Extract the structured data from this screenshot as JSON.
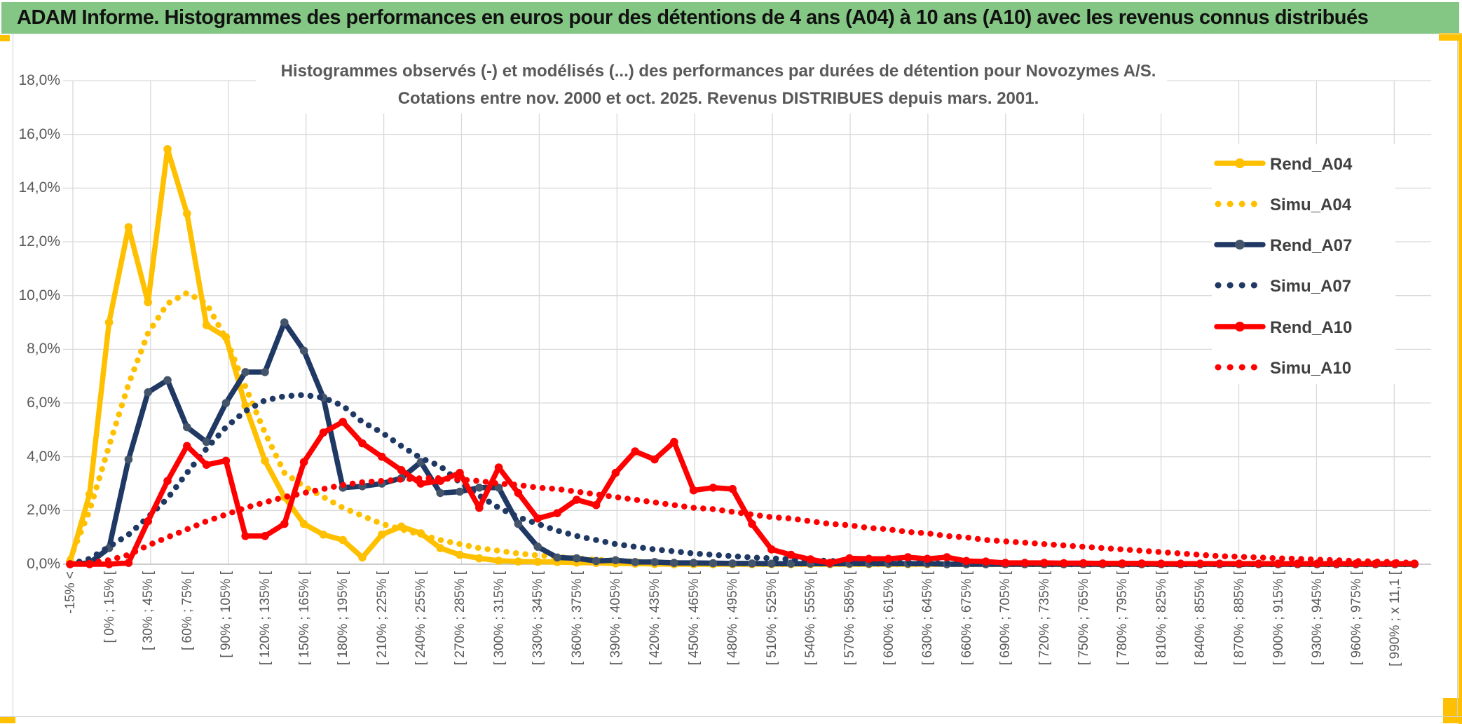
{
  "header": {
    "title": "ADAM Informe. Histogrammes des performances en euros pour des détentions de 4 ans (A04) à 10 ans (A10) avec les revenus connus distribués"
  },
  "chart": {
    "title_line1": "Histogrammes observés (-) et modélisés (...) des performances par durées de détention pour Novozymes A/S.",
    "title_line2": "Cotations entre nov. 2000 et oct. 2025. Revenus DISTRIBUES depuis mars. 2001."
  },
  "y_axis": {
    "labels_top_down": [
      "18,0%",
      "16,0%",
      "14,0%",
      "12,0%",
      "10,0%",
      "8,0%",
      "6,0%",
      "4,0%",
      "2,0%",
      "0,0%"
    ],
    "min": 0,
    "max": 18,
    "step": 2
  },
  "colors": {
    "header_bg": "#84c784",
    "gold": "#ffc000",
    "grid": "#d9d9d9",
    "axis_line": "#bfbfbf",
    "axis_text": "#595959",
    "title_text": "#595959",
    "legend_text": "#404040",
    "a04": "#ffc000",
    "a07_line": "#1f3864",
    "a07_marker": "#44546a",
    "a10": "#ff0000"
  },
  "legend": [
    {
      "label": "Rend_A04",
      "style": "solid",
      "color": "#ffc000",
      "marker": "#ffc000"
    },
    {
      "label": "Simu_A04",
      "style": "dotted",
      "color": "#ffc000",
      "marker": "#ffc000"
    },
    {
      "label": "Rend_A07",
      "style": "solid",
      "color": "#1f3864",
      "marker": "#44546a"
    },
    {
      "label": "Simu_A07",
      "style": "dotted",
      "color": "#1f3864",
      "marker": "#1f3864"
    },
    {
      "label": "Rend_A10",
      "style": "solid",
      "color": "#ff0000",
      "marker": "#ff0000"
    },
    {
      "label": "Simu_A10",
      "style": "dotted",
      "color": "#ff0000",
      "marker": "#ff0000"
    }
  ],
  "chart_data": {
    "type": "line",
    "title": "Histogrammes observés (-) et modélisés (...) des performances par durées de détention pour Novozymes A/S. Cotations entre nov. 2000 et oct. 2025. Revenus DISTRIBUES depuis mars. 2001.",
    "ylabel": "",
    "xlabel": "",
    "ylim": [
      0,
      18
    ],
    "grid": true,
    "legend_position": "right",
    "n_points": 70,
    "label_every": 2,
    "categories": [
      "-15% <",
      "[ 0% ; 15% [",
      "[ 30% ; 45% [",
      "[ 60% ; 75% [",
      "[ 90% ; 105% [",
      "[ 120% ; 135% [",
      "[ 150% ; 165% [",
      "[ 180% ; 195% [",
      "[ 210% ; 225% [",
      "[ 240% ; 255% [",
      "[ 270% ; 285% [",
      "[ 300% ; 315% [",
      "[ 330% ; 345% [",
      "[ 360% ; 375% [",
      "[ 390% ; 405% [",
      "[ 420% ; 435% [",
      "[ 450% ; 465% [",
      "[ 480% ; 495% [",
      "[ 510% ; 525% [",
      "[ 540% ; 555% [",
      "[ 570% ; 585% [",
      "[ 600% ; 615% [",
      "[ 630% ; 645% [",
      "[ 660% ; 675% [",
      "[ 690% ; 705% [",
      "[ 720% ; 735% [",
      "[ 750% ; 765% [",
      "[ 780% ; 795% [",
      "[ 810% ; 825% [",
      "[ 840% ; 855% [",
      "[ 870% ; 885% [",
      "[ 900% ; 915% [",
      "[ 930% ; 945% [",
      "[ 960% ; 975% [",
      "[ 990% ; x 11,1 ["
    ],
    "series": [
      {
        "name": "Rend_A04",
        "style": "solid",
        "values": [
          0.1,
          2.6,
          9,
          12.55,
          9.75,
          15.45,
          13.05,
          8.9,
          8.45,
          5.9,
          3.85,
          2.5,
          1.5,
          1.1,
          0.9,
          0.25,
          1.1,
          1.4,
          1.15,
          0.6,
          0.35,
          0.22,
          0.13,
          0.1,
          0.09,
          0.08,
          0.06,
          0.05,
          0.03,
          0.02,
          0.01,
          0,
          0,
          0,
          0,
          0,
          0,
          0,
          0,
          0,
          0,
          0,
          0,
          0,
          0,
          0,
          0,
          0,
          0,
          0,
          0,
          0,
          0,
          0,
          0,
          0,
          0,
          0,
          0,
          0,
          0,
          0,
          0,
          0,
          0,
          0,
          0,
          0,
          0,
          0
        ]
      },
      {
        "name": "Simu_A04",
        "style": "dotted",
        "values": [
          0.2,
          2,
          4.4,
          6.7,
          8.6,
          9.7,
          10.1,
          9.7,
          8.4,
          6.6,
          4.9,
          3.4,
          2.9,
          2.5,
          2.1,
          1.8,
          1.5,
          1.3,
          1.1,
          0.9,
          0.75,
          0.6,
          0.5,
          0.4,
          0.33,
          0.27,
          0.22,
          0.17,
          0.13,
          0.1,
          0.07,
          0.05,
          0.03,
          0.02,
          0.01,
          0,
          0,
          0,
          0,
          0,
          0,
          0,
          0,
          0,
          0,
          0,
          0,
          0,
          0,
          0,
          0,
          0,
          0,
          0,
          0,
          0,
          0,
          0,
          0,
          0,
          0,
          0,
          0,
          0,
          0,
          0,
          0,
          0,
          0,
          0
        ]
      },
      {
        "name": "Rend_A07",
        "style": "solid",
        "values": [
          0,
          0.05,
          0.6,
          3.9,
          6.4,
          6.85,
          5.1,
          4.55,
          6,
          7.15,
          7.15,
          9,
          7.95,
          6.2,
          2.85,
          2.9,
          3,
          3.2,
          3.8,
          2.65,
          2.7,
          2.85,
          2.85,
          1.5,
          0.65,
          0.25,
          0.22,
          0.12,
          0.15,
          0.08,
          0.08,
          0.05,
          0.05,
          0.04,
          0.03,
          0.03,
          0.02,
          0.02,
          0.02,
          0.02,
          0.02,
          0.02,
          0.02,
          0.02,
          0.02,
          0,
          0,
          0,
          0,
          0,
          0,
          0,
          0,
          0,
          0,
          0,
          0,
          0,
          0,
          0,
          0,
          0,
          0,
          0,
          0,
          0,
          0,
          0,
          0,
          0
        ]
      },
      {
        "name": "Simu_A07",
        "style": "dotted",
        "values": [
          0,
          0.2,
          0.65,
          1.1,
          1.75,
          2.45,
          3.4,
          4.3,
          5.1,
          5.7,
          6.1,
          6.25,
          6.3,
          6.2,
          5.9,
          5.3,
          4.9,
          4.4,
          3.95,
          3.65,
          3.05,
          2.55,
          2.1,
          1.75,
          1.5,
          1.25,
          1.05,
          0.9,
          0.75,
          0.65,
          0.55,
          0.48,
          0.4,
          0.35,
          0.3,
          0.25,
          0.22,
          0.18,
          0.15,
          0.12,
          0.1,
          0.08,
          0.07,
          0.05,
          0.04,
          0.03,
          0.02,
          0.02,
          0.01,
          0.01,
          0,
          0,
          0,
          0,
          0,
          0,
          0,
          0,
          0,
          0,
          0,
          0,
          0,
          0,
          0,
          0,
          0,
          0,
          0,
          0
        ]
      },
      {
        "name": "Rend_A10",
        "style": "solid",
        "values": [
          0,
          0,
          0,
          0.05,
          1.6,
          3.1,
          4.4,
          3.7,
          3.85,
          1.05,
          1.05,
          1.5,
          3.8,
          4.9,
          5.3,
          4.5,
          4,
          3.5,
          3,
          3.1,
          3.4,
          2.1,
          3.6,
          2.65,
          1.7,
          1.9,
          2.4,
          2.2,
          3.4,
          4.2,
          3.9,
          4.55,
          2.75,
          2.85,
          2.8,
          1.5,
          0.55,
          0.35,
          0.18,
          0.05,
          0.22,
          0.2,
          0.2,
          0.26,
          0.2,
          0.26,
          0.12,
          0.1,
          0.05,
          0.05,
          0.05,
          0.04,
          0.04,
          0.03,
          0.03,
          0.03,
          0.02,
          0.02,
          0.02,
          0.02,
          0.02,
          0.02,
          0.02,
          0.02,
          0.02,
          0.02,
          0.02,
          0.02,
          0.02,
          0.02
        ]
      },
      {
        "name": "Simu_A10",
        "style": "dotted",
        "values": [
          0,
          0.05,
          0.15,
          0.35,
          0.7,
          1,
          1.3,
          1.6,
          1.85,
          2.1,
          2.3,
          2.5,
          2.65,
          2.8,
          2.95,
          3.05,
          3.1,
          3.15,
          3.2,
          3.2,
          3.15,
          3.1,
          3,
          2.95,
          2.85,
          2.8,
          2.7,
          2.6,
          2.5,
          2.4,
          2.3,
          2.2,
          2.1,
          2.05,
          1.95,
          1.85,
          1.75,
          1.7,
          1.6,
          1.5,
          1.45,
          1.35,
          1.3,
          1.2,
          1.15,
          1.05,
          1,
          0.9,
          0.85,
          0.8,
          0.75,
          0.7,
          0.65,
          0.6,
          0.55,
          0.5,
          0.45,
          0.4,
          0.35,
          0.3,
          0.28,
          0.25,
          0.22,
          0.2,
          0.17,
          0.15,
          0.12,
          0.1,
          0.08,
          0.05
        ]
      }
    ]
  }
}
